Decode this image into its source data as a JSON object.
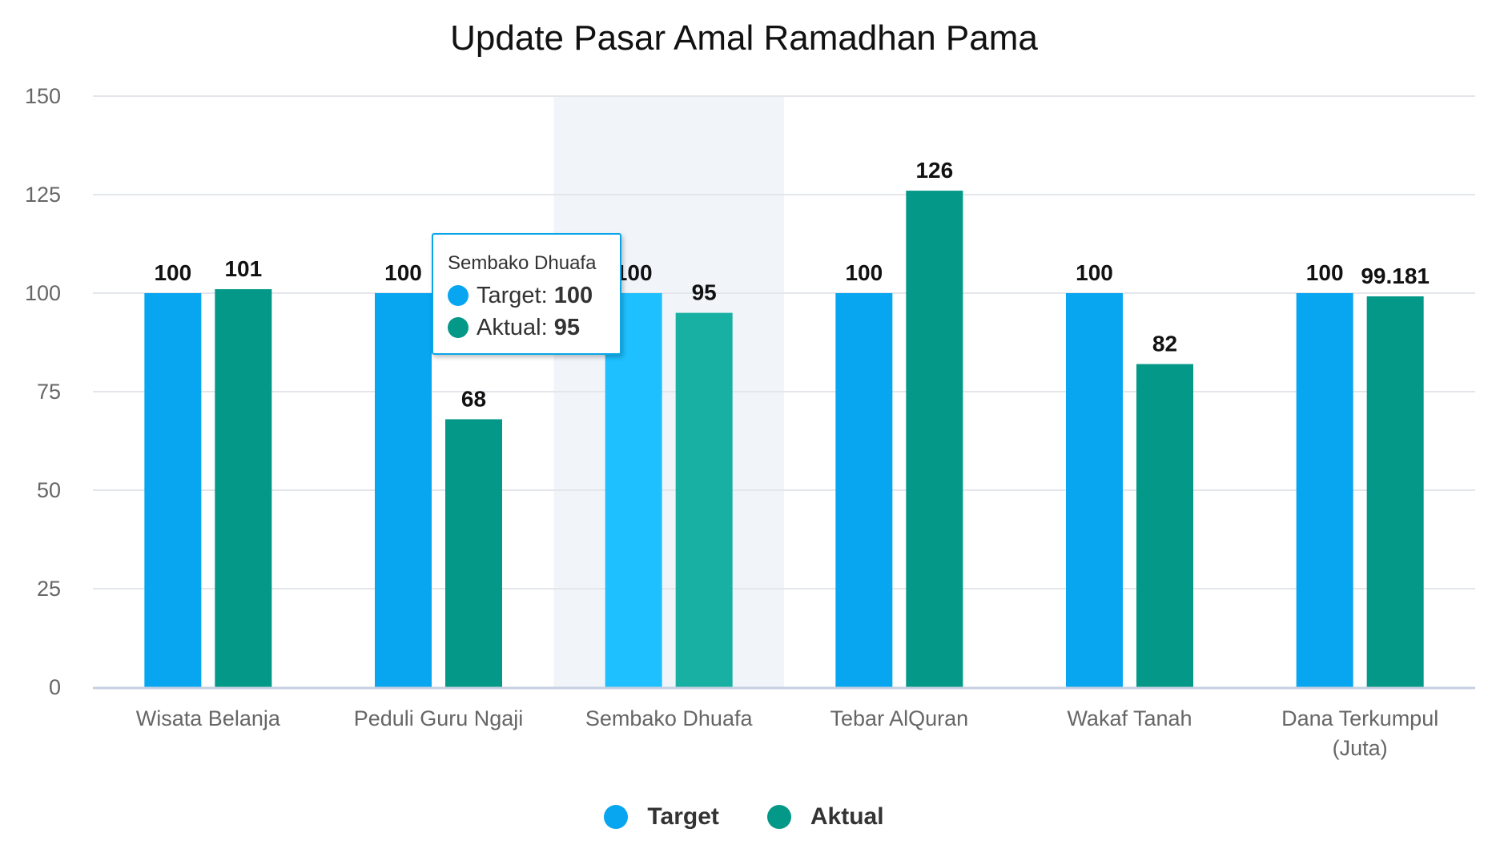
{
  "chart_data": {
    "type": "bar",
    "title": "Update Pasar Amal Ramadhan Pama",
    "xlabel": "",
    "ylabel": "",
    "ylim": [
      0,
      150
    ],
    "yticks": [
      0,
      25,
      50,
      75,
      100,
      125,
      150
    ],
    "grid": true,
    "legend_position": "bottom-center",
    "categories": [
      [
        "Wisata Belanja"
      ],
      [
        "Peduli Guru Ngaji"
      ],
      [
        "Sembako Dhuafa"
      ],
      [
        "Tebar AlQuran"
      ],
      [
        "Wakaf Tanah"
      ],
      [
        "Dana Terkumpul",
        "(Juta)"
      ]
    ],
    "series": [
      {
        "name": "Target",
        "color": "#08a6f0",
        "highlight_color": "#1ec0ff",
        "values": [
          100,
          100,
          100,
          100,
          100,
          100
        ],
        "labels": [
          "100",
          "100",
          "100",
          "100",
          "100",
          "100"
        ]
      },
      {
        "name": "Aktual",
        "color": "#039887",
        "highlight_color": "#18b0a2",
        "values": [
          101,
          68,
          95,
          126,
          82,
          99.181
        ],
        "labels": [
          "101",
          "68",
          "95",
          "126",
          "82",
          "99.181"
        ]
      }
    ],
    "hovered_category_index": 2,
    "tooltip": {
      "title": "Sembako Dhuafa",
      "rows": [
        {
          "label": "Target: ",
          "value": "100",
          "color": "#08a6f0"
        },
        {
          "label": "Aktual: ",
          "value": "95",
          "color": "#039887"
        }
      ]
    }
  }
}
